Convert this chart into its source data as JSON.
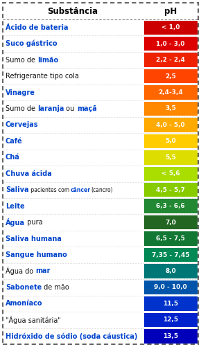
{
  "title_substance": "Substância",
  "title_ph": "pH",
  "rows": [
    {
      "substance": [
        {
          "t": "Ácido de bateria",
          "b": true
        }
      ],
      "ph_text": "< 1,0",
      "color": "#cc0000"
    },
    {
      "substance": [
        {
          "t": "Suco gástrico",
          "b": true
        }
      ],
      "ph_text": "1,0 - 3,0",
      "color": "#dd0000"
    },
    {
      "substance": [
        {
          "t": "Sumo de ",
          "b": false
        },
        {
          "t": "limão",
          "b": true
        }
      ],
      "ph_text": "2,2 - 2,4",
      "color": "#ee2200"
    },
    {
      "substance": [
        {
          "t": "Refrigerante tipo cola",
          "b": false
        }
      ],
      "ph_text": "2,5",
      "color": "#ff4400"
    },
    {
      "substance": [
        {
          "t": "Vinagre",
          "b": true
        }
      ],
      "ph_text": "2,4-3,4",
      "color": "#ff6600"
    },
    {
      "substance": [
        {
          "t": "Sumo de ",
          "b": false
        },
        {
          "t": "laranja",
          "b": true
        },
        {
          "t": " ou ",
          "b": false
        },
        {
          "t": "maçã",
          "b": true
        }
      ],
      "ph_text": "3,5",
      "color": "#ff8800"
    },
    {
      "substance": [
        {
          "t": "Cervejas",
          "b": true
        }
      ],
      "ph_text": "4,0 - 5,0",
      "color": "#ffaa00"
    },
    {
      "substance": [
        {
          "t": "Café",
          "b": true
        }
      ],
      "ph_text": "5,0",
      "color": "#ffcc00"
    },
    {
      "substance": [
        {
          "t": "Chá",
          "b": true
        }
      ],
      "ph_text": "5,5",
      "color": "#dddd00"
    },
    {
      "substance": [
        {
          "t": "Chuva ácida",
          "b": true
        }
      ],
      "ph_text": "< 5,6",
      "color": "#aadd00"
    },
    {
      "substance": [
        {
          "t": "Saliva",
          "b": true
        },
        {
          "t": " pacientes com ",
          "b": false,
          "s": true
        },
        {
          "t": "câncer",
          "b": true,
          "s": true
        },
        {
          "t": "(cancro)",
          "b": false,
          "s": true
        }
      ],
      "ph_text": "4,5 - 5,7",
      "color": "#88cc00"
    },
    {
      "substance": [
        {
          "t": "Leite",
          "b": true
        }
      ],
      "ph_text": "6,3 - 6,6",
      "color": "#228833"
    },
    {
      "substance": [
        {
          "t": "Água",
          "b": true
        },
        {
          "t": " pura",
          "b": false
        }
      ],
      "ph_text": "7,0",
      "color": "#226622"
    },
    {
      "substance": [
        {
          "t": "Saliva humana",
          "b": true
        }
      ],
      "ph_text": "6,5 - 7,5",
      "color": "#117733"
    },
    {
      "substance": [
        {
          "t": "Sangue humano",
          "b": true
        }
      ],
      "ph_text": "7,35 - 7,45",
      "color": "#008855"
    },
    {
      "substance": [
        {
          "t": "Água do ",
          "b": false
        },
        {
          "t": "mar",
          "b": true
        }
      ],
      "ph_text": "8,0",
      "color": "#007777"
    },
    {
      "substance": [
        {
          "t": "Sabonete",
          "b": true
        },
        {
          "t": " de mão",
          "b": false
        }
      ],
      "ph_text": "9,0 - 10,0",
      "color": "#0055aa"
    },
    {
      "substance": [
        {
          "t": "Amoníaco",
          "b": true
        }
      ],
      "ph_text": "11,5",
      "color": "#0033cc"
    },
    {
      "substance": [
        {
          "t": "\"Água sanitária\"",
          "b": false
        }
      ],
      "ph_text": "12,5",
      "color": "#0022cc"
    },
    {
      "substance": [
        {
          "t": "Hidróxido de sódio (soda cáustica)",
          "b": true
        }
      ],
      "ph_text": "13,5",
      "color": "#0000bb"
    }
  ],
  "bg_color": "#ffffff",
  "blue_color": "#0044cc",
  "black_color": "#111111",
  "fig_w": 2.9,
  "fig_h": 5.01,
  "dpi": 100
}
